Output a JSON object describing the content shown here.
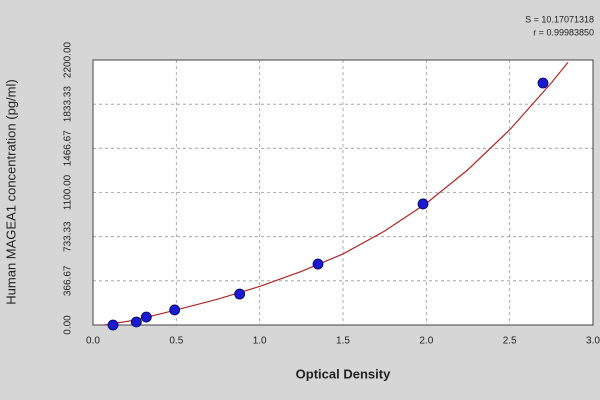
{
  "chart_data": {
    "type": "scatter",
    "annotations": [
      "S = 10.17071318",
      "r = 0.99983850"
    ],
    "x_label": "Optical Density",
    "y_label": "Human MAGEA1  concentration (pg/ml)",
    "xlim": [
      0,
      3.0
    ],
    "ylim": [
      0,
      2200
    ],
    "xticks": [
      {
        "value": 0,
        "label": "0.0"
      },
      0.5,
      {
        "value": 1,
        "label": "1.0"
      },
      1.5,
      {
        "value": 2,
        "label": "2.0"
      },
      2.5,
      {
        "value": 3,
        "label": "3.0"
      }
    ],
    "yticks": [
      {
        "value": 0,
        "label": "0.00"
      },
      366.67,
      733.33,
      {
        "value": 1100,
        "label": "1100.00"
      },
      1466.67,
      1833.33,
      {
        "value": 2200,
        "label": "2200.00"
      }
    ],
    "grid": true,
    "series": [
      {
        "color": "#1a1ad0",
        "x": [
          0.12,
          0.26,
          0.32,
          0.49,
          0.88,
          1.35,
          1.98,
          2.7
        ],
        "values": [
          0,
          25,
          66,
          125,
          257,
          506,
          1005,
          2009
        ]
      }
    ],
    "curve": {
      "color": "#b02828",
      "x": [
        0.07,
        0.25,
        0.5,
        0.75,
        1.0,
        1.25,
        1.5,
        1.75,
        2.0,
        2.25,
        2.5,
        2.75,
        2.85
      ],
      "values": [
        0,
        40,
        125,
        215,
        320,
        445,
        590,
        780,
        1010,
        1290,
        1620,
        2010,
        2180
      ]
    }
  }
}
